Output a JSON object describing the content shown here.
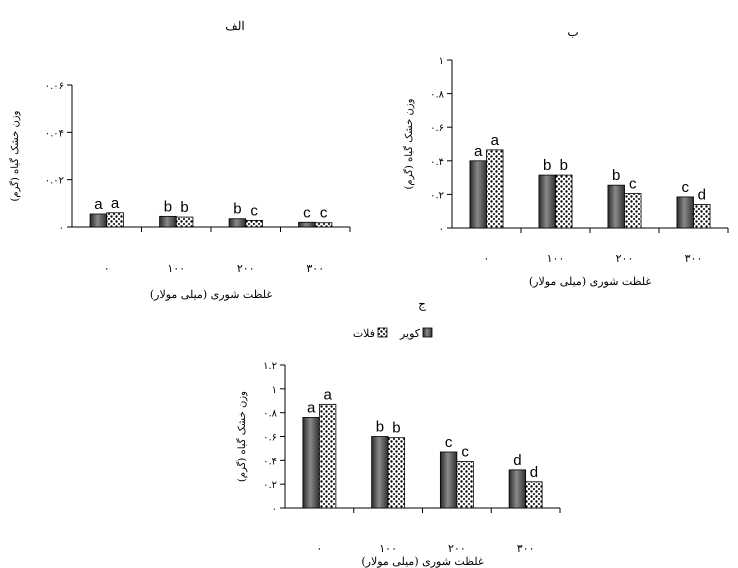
{
  "chart_data": [
    {
      "type": "bar",
      "title": "الف",
      "xlabel": "غلظت شوری (میلی مولار)",
      "ylabel": "وزن خشک گیاه (گرم)",
      "categories": [
        "۰",
        "۱۰۰",
        "۲۰۰",
        "۳۰۰"
      ],
      "ylim": [
        0,
        0.06
      ],
      "yticks": [
        "۰",
        "۰.۰۲",
        "۰.۰۴",
        "۰.۰۶"
      ],
      "series": [
        {
          "name": "کویر",
          "values": [
            0.0055,
            0.0045,
            0.0035,
            0.002
          ],
          "labels": [
            "a",
            "b",
            "b",
            "c"
          ]
        },
        {
          "name": "فلات",
          "values": [
            0.006,
            0.0042,
            0.0028,
            0.0018
          ],
          "labels": [
            "a",
            "b",
            "c",
            "c"
          ]
        }
      ]
    },
    {
      "type": "bar",
      "title": "ب",
      "xlabel": "غلظت شوری (میلی مولار)",
      "ylabel": "وزن خشک گیاه (گرم)",
      "categories": [
        "۰",
        "۱۰۰",
        "۲۰۰",
        "۳۰۰"
      ],
      "ylim": [
        0,
        1
      ],
      "yticks": [
        "۰",
        "۰.۲",
        "۰.۴",
        "۰.۶",
        "۰.۸",
        "۱"
      ],
      "series": [
        {
          "name": "کویر",
          "values": [
            0.4,
            0.315,
            0.255,
            0.185
          ],
          "labels": [
            "a",
            "b",
            "b",
            "c"
          ]
        },
        {
          "name": "فلات",
          "values": [
            0.465,
            0.315,
            0.205,
            0.14
          ],
          "labels": [
            "a",
            "b",
            "c",
            "d"
          ]
        }
      ]
    },
    {
      "type": "bar",
      "title": "ج",
      "xlabel": "غلظت شوری (میلی مولار)",
      "ylabel": "وزن خشک گیاه (گرم)",
      "categories": [
        "۰",
        "۱۰۰",
        "۲۰۰",
        "۳۰۰"
      ],
      "ylim": [
        0,
        1.2
      ],
      "yticks": [
        "۰",
        "۰.۲",
        "۰.۴",
        "۰.۶",
        "۰.۸",
        "۱",
        "۱.۲"
      ],
      "series": [
        {
          "name": "کویر",
          "values": [
            0.76,
            0.6,
            0.47,
            0.32
          ],
          "labels": [
            "a",
            "b",
            "c",
            "d"
          ]
        },
        {
          "name": "فلات",
          "values": [
            0.87,
            0.59,
            0.39,
            0.22
          ],
          "labels": [
            "a",
            "b",
            "c",
            "d"
          ]
        }
      ]
    }
  ],
  "legend": {
    "items": [
      {
        "label": "کویر",
        "pattern": "dark-gradient"
      },
      {
        "label": "فلات",
        "pattern": "dots"
      }
    ]
  }
}
